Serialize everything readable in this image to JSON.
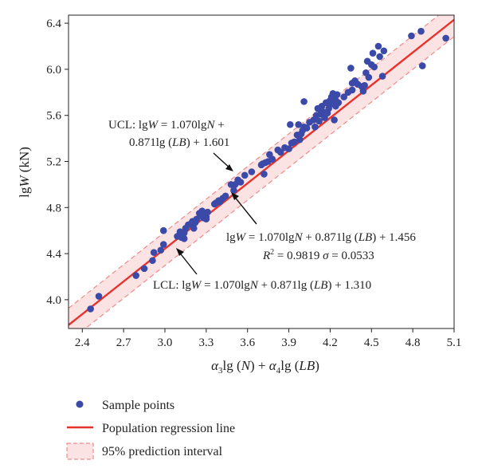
{
  "colors": {
    "points": "#3b49a8",
    "line": "#e8322d",
    "band_fill": "#fbe3e3",
    "band_edge": "#f08a8a"
  },
  "chart_data": {
    "type": "scatter",
    "title": "",
    "xlabel": {
      "alpha3": "α",
      "sub3": "3",
      "lgN": "lg (",
      "N": "N",
      "close1": ") + ",
      "alpha4": "α",
      "sub4": "4",
      "lgLB": "lg (",
      "LB": "LB",
      "close2": ")"
    },
    "ylabel": {
      "lg": "lg",
      "W": "W",
      "unit": " (kN)"
    },
    "xlim": [
      2.3,
      5.1
    ],
    "ylim": [
      3.75,
      6.47
    ],
    "xticks": [
      "2.4",
      "2.7",
      "3.0",
      "3.3",
      "3.6",
      "3.9",
      "4.2",
      "4.5",
      "4.8",
      "5.1"
    ],
    "yticks": [
      "4.0",
      "4.4",
      "4.8",
      "5.2",
      "5.6",
      "6.0",
      "6.4"
    ],
    "xtick_values": [
      2.4,
      2.7,
      3.0,
      3.3,
      3.6,
      3.9,
      4.2,
      4.5,
      4.8,
      5.1
    ],
    "ytick_values": [
      4.0,
      4.4,
      4.8,
      5.2,
      5.6,
      6.0,
      6.4
    ],
    "regression_line": {
      "x": [
        2.3,
        5.1
      ],
      "y": [
        3.78,
        6.43
      ]
    },
    "prediction_interval_halfwidth": 0.146,
    "series": [
      {
        "name": "Sample points",
        "points": [
          [
            2.46,
            3.92
          ],
          [
            2.52,
            4.03
          ],
          [
            2.79,
            4.21
          ],
          [
            2.85,
            4.27
          ],
          [
            2.91,
            4.34
          ],
          [
            2.92,
            4.41
          ],
          [
            2.97,
            4.43
          ],
          [
            2.99,
            4.48
          ],
          [
            2.99,
            4.6
          ],
          [
            3.09,
            4.55
          ],
          [
            3.11,
            4.59
          ],
          [
            3.12,
            4.54
          ],
          [
            3.14,
            4.53
          ],
          [
            3.14,
            4.58
          ],
          [
            3.15,
            4.62
          ],
          [
            3.17,
            4.65
          ],
          [
            3.19,
            4.66
          ],
          [
            3.2,
            4.68
          ],
          [
            3.21,
            4.62
          ],
          [
            3.22,
            4.67
          ],
          [
            3.23,
            4.7
          ],
          [
            3.25,
            4.75
          ],
          [
            3.26,
            4.73
          ],
          [
            3.27,
            4.77
          ],
          [
            3.28,
            4.71
          ],
          [
            3.29,
            4.74
          ],
          [
            3.3,
            4.72
          ],
          [
            3.3,
            4.7
          ],
          [
            3.31,
            4.76
          ],
          [
            3.36,
            4.83
          ],
          [
            3.37,
            4.84
          ],
          [
            3.39,
            4.86
          ],
          [
            3.4,
            4.85
          ],
          [
            3.42,
            4.88
          ],
          [
            3.44,
            4.9
          ],
          [
            3.48,
            5.0
          ],
          [
            3.5,
            4.95
          ],
          [
            3.51,
            5.0
          ],
          [
            3.53,
            5.04
          ],
          [
            3.55,
            5.02
          ],
          [
            3.58,
            5.08
          ],
          [
            3.63,
            5.11
          ],
          [
            3.7,
            5.17
          ],
          [
            3.71,
            5.18
          ],
          [
            3.72,
            5.09
          ],
          [
            3.73,
            5.19
          ],
          [
            3.75,
            5.2
          ],
          [
            3.76,
            5.26
          ],
          [
            3.78,
            5.22
          ],
          [
            3.82,
            5.3
          ],
          [
            3.84,
            5.28
          ],
          [
            3.87,
            5.32
          ],
          [
            3.9,
            5.31
          ],
          [
            3.91,
            5.52
          ],
          [
            3.92,
            5.36
          ],
          [
            3.94,
            5.37
          ],
          [
            3.96,
            5.43
          ],
          [
            3.97,
            5.52
          ],
          [
            3.98,
            5.39
          ],
          [
            3.99,
            5.44
          ],
          [
            4.0,
            5.47
          ],
          [
            4.01,
            5.72
          ],
          [
            4.01,
            5.5
          ],
          [
            4.03,
            5.49
          ],
          [
            4.05,
            5.54
          ],
          [
            4.08,
            5.56
          ],
          [
            4.09,
            5.5
          ],
          [
            4.1,
            5.6
          ],
          [
            4.11,
            5.66
          ],
          [
            4.12,
            5.55
          ],
          [
            4.13,
            5.61
          ],
          [
            4.14,
            5.68
          ],
          [
            4.15,
            5.63
          ],
          [
            4.16,
            5.58
          ],
          [
            4.17,
            5.71
          ],
          [
            4.18,
            5.62
          ],
          [
            4.19,
            5.66
          ],
          [
            4.2,
            5.73
          ],
          [
            4.21,
            5.76
          ],
          [
            4.21,
            5.7
          ],
          [
            4.22,
            5.79
          ],
          [
            4.23,
            5.56
          ],
          [
            4.24,
            5.68
          ],
          [
            4.24,
            5.73
          ],
          [
            4.25,
            5.78
          ],
          [
            4.26,
            5.71
          ],
          [
            4.3,
            5.76
          ],
          [
            4.33,
            5.8
          ],
          [
            4.35,
            6.01
          ],
          [
            4.36,
            5.88
          ],
          [
            4.36,
            5.82
          ],
          [
            4.38,
            5.9
          ],
          [
            4.4,
            5.87
          ],
          [
            4.43,
            5.85
          ],
          [
            4.44,
            5.81
          ],
          [
            4.45,
            5.86
          ],
          [
            4.46,
            5.97
          ],
          [
            4.47,
            6.07
          ],
          [
            4.48,
            5.93
          ],
          [
            4.5,
            6.04
          ],
          [
            4.51,
            6.14
          ],
          [
            4.52,
            6.02
          ],
          [
            4.55,
            6.2
          ],
          [
            4.56,
            6.11
          ],
          [
            4.58,
            5.94
          ],
          [
            4.59,
            6.16
          ],
          [
            4.79,
            6.29
          ],
          [
            4.86,
            6.33
          ],
          [
            4.87,
            6.03
          ],
          [
            5.04,
            6.27
          ]
        ]
      }
    ],
    "annotations": {
      "ucl": {
        "line1_a": "UCL: lg",
        "line1_W": "W",
        "line1_b": " = 1.070lg",
        "line1_N": "N",
        "line1_c": " +",
        "line2_a": "0.871lg (",
        "line2_LB": "LB",
        "line2_b": ") + 1.601"
      },
      "mean": {
        "line1_a": "lg",
        "line1_W": "W",
        "line1_b": " = 1.070lg",
        "line1_N": "N",
        "line1_c": " + 0.871lg (",
        "line1_LB": "LB",
        "line1_d": ") + 1.456",
        "line2_R": "R",
        "line2_sup": "2",
        "line2_eq": " = 0.9819 ",
        "line2_sigma": "σ",
        "line2_rest": " = 0.0533"
      },
      "lcl": {
        "line_a": "LCL: lg",
        "line_W": "W",
        "line_b": " = 1.070lg",
        "line_N": "N",
        "line_c": " + 0.871lg (",
        "line_LB": "LB",
        "line_d": ") + 1.310"
      }
    },
    "legend": {
      "placement": "bottom-left",
      "items": [
        "Sample points",
        "Population regression line",
        "95% prediction interval"
      ]
    }
  }
}
